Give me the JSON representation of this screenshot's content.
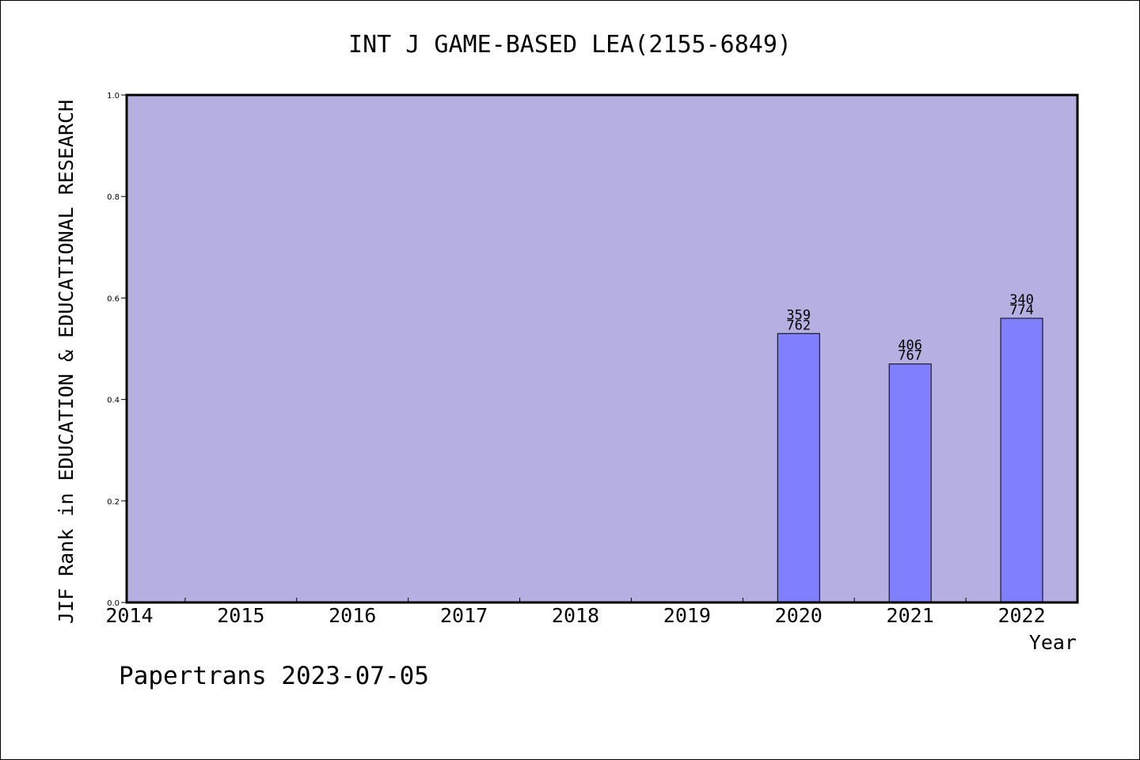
{
  "chart_data": {
    "type": "bar",
    "title": "INT J GAME-BASED LEA(2155-6849)",
    "xlabel": "Year",
    "ylabel": "JIF Rank in EDUCATION & EDUCATIONAL RESEARCH",
    "categories": [
      "2014",
      "2015",
      "2016",
      "2017",
      "2018",
      "2019",
      "2020",
      "2021",
      "2022"
    ],
    "values": [
      null,
      null,
      null,
      null,
      null,
      null,
      0.53,
      0.47,
      0.56
    ],
    "bar_labels": [
      null,
      null,
      null,
      null,
      null,
      null,
      {
        "top": "359",
        "bottom": "762"
      },
      {
        "top": "406",
        "bottom": "767"
      },
      {
        "top": "340",
        "bottom": "774"
      }
    ],
    "ylim": [
      0,
      1.0
    ],
    "yticks": [
      "0.0",
      "0.2",
      "0.4",
      "0.6",
      "0.8",
      "1.0"
    ],
    "ytick_values": [
      0,
      0.2,
      0.4,
      0.6,
      0.8,
      1.0
    ],
    "grid": false,
    "colors": {
      "plot_background": "#b6b0e2",
      "bar_fill": "#8080ff",
      "axis": "#000000"
    }
  },
  "footer": {
    "credit": "Papertrans 2023-07-05"
  }
}
